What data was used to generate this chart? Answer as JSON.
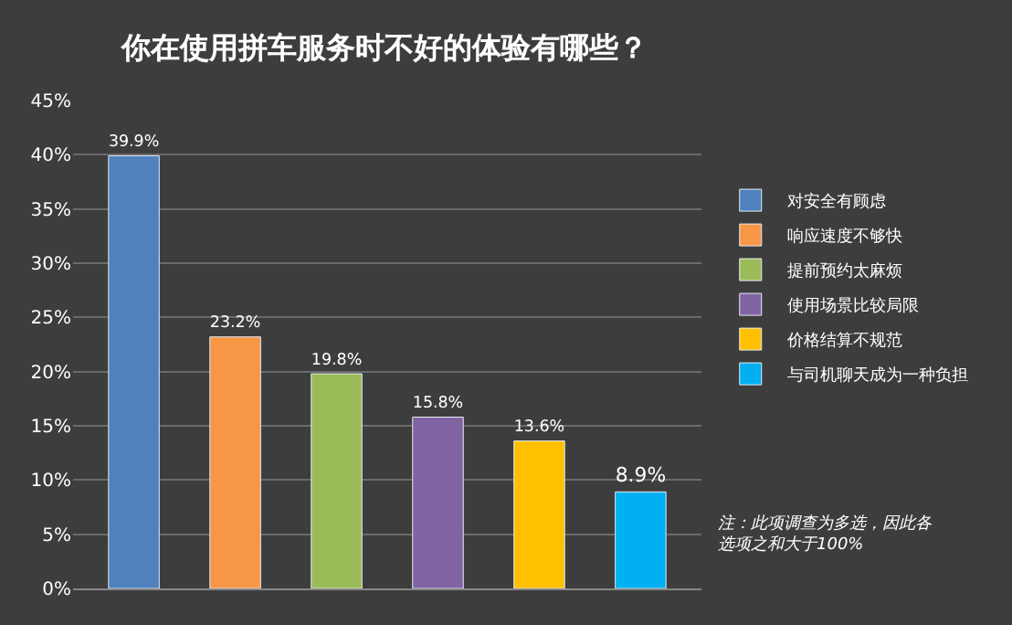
{
  "chart_data": {
    "type": "bar",
    "title": "你在使用拼车服务时不好的体验有哪些？",
    "categories": [
      null,
      null,
      null,
      null,
      null,
      null
    ],
    "series": [
      {
        "name": "对安全有顾虑",
        "color": "#4f81bd",
        "values": [
          39.9,
          null,
          null,
          null,
          null,
          null
        ]
      },
      {
        "name": "响应速度不够快",
        "color": "#f79646",
        "values": [
          null,
          23.2,
          null,
          null,
          null,
          null
        ]
      },
      {
        "name": "提前预约太麻烦",
        "color": "#9bbb59",
        "values": [
          null,
          null,
          19.8,
          null,
          null,
          null
        ]
      },
      {
        "name": "使用场景比较局限",
        "color": "#8064a2",
        "values": [
          null,
          null,
          null,
          15.8,
          null,
          null
        ]
      },
      {
        "name": "价格结算不规范",
        "color": "#ffc000",
        "values": [
          null,
          null,
          null,
          null,
          13.6,
          null
        ]
      },
      {
        "name": "与司机聊天成为一种负担",
        "color": "#00b0f0",
        "values": [
          null,
          null,
          null,
          null,
          null,
          8.9
        ]
      }
    ],
    "value_labels": [
      "39.9%",
      "23.2%",
      "19.8%",
      "15.8%",
      "13.6%",
      "8.9%"
    ],
    "ylim": [
      0,
      45
    ],
    "yticks": [
      {
        "value": 0,
        "label": "0%"
      },
      {
        "value": 5,
        "label": "5%"
      },
      {
        "value": 10,
        "label": "10%"
      },
      {
        "value": 15,
        "label": "15%"
      },
      {
        "value": 20,
        "label": "20%"
      },
      {
        "value": 25,
        "label": "25%"
      },
      {
        "value": 30,
        "label": "30%"
      },
      {
        "value": 35,
        "label": "35%"
      },
      {
        "value": 40,
        "label": "40%"
      },
      {
        "value": 45,
        "label": "45%"
      }
    ],
    "grid": "y",
    "legend": "right",
    "annotations": [
      "注：此项调查为多选，因此各选项之和大于100%"
    ]
  }
}
